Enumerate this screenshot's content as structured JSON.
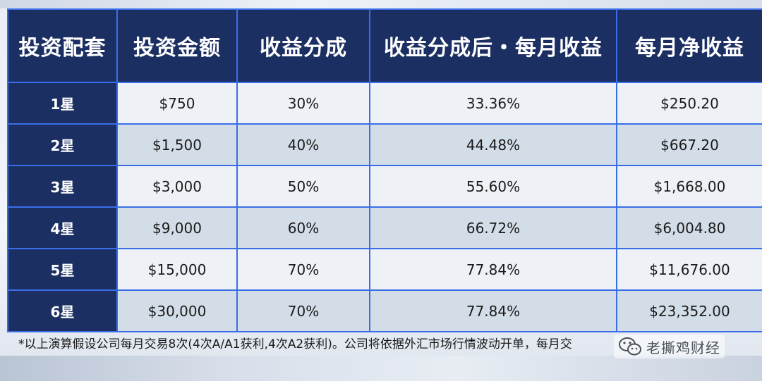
{
  "table": {
    "headers": [
      "投资配套",
      "投资金额",
      "收益分成",
      "收益分成后・每月收益",
      "每月净收益"
    ],
    "rows": [
      {
        "package": "1星",
        "amount": "$750",
        "share": "30%",
        "monthly_rate": "33.36%",
        "net": "$250.20"
      },
      {
        "package": "2星",
        "amount": "$1,500",
        "share": "40%",
        "monthly_rate": "44.48%",
        "net": "$667.20"
      },
      {
        "package": "3星",
        "amount": "$3,000",
        "share": "50%",
        "monthly_rate": "55.60%",
        "net": "$1,668.00"
      },
      {
        "package": "4星",
        "amount": "$9,000",
        "share": "60%",
        "monthly_rate": "66.72%",
        "net": "$6,004.80"
      },
      {
        "package": "5星",
        "amount": "$15,000",
        "share": "70%",
        "monthly_rate": "77.84%",
        "net": "$11,676.00"
      },
      {
        "package": "6星",
        "amount": "$30,000",
        "share": "70%",
        "monthly_rate": "77.84%",
        "net": "$23,352.00"
      }
    ]
  },
  "footnote": "*以上演算假设公司每月交易8次(4次A/A1获利,4次A2获利)。公司将依据外汇市场行情波动开单，每月交",
  "watermark": {
    "text": "老撕鸡财经",
    "icon": "wechat-icon"
  },
  "colors": {
    "header_bg": "#1c2f63",
    "border": "#3a6ee8",
    "row_light": "#eef1f6",
    "row_dark": "#d3dde8"
  }
}
